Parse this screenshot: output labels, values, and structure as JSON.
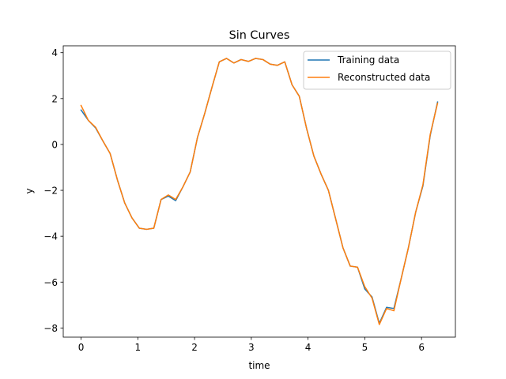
{
  "chart_data": {
    "type": "line",
    "title": "Sin Curves",
    "xlabel": "time",
    "ylabel": "y",
    "xlim": [
      -0.314,
      6.597
    ],
    "ylim": [
      -8.4,
      4.3
    ],
    "xticks": [
      0,
      1,
      2,
      3,
      4,
      5,
      6
    ],
    "yticks": [
      4,
      2,
      0,
      -2,
      -4,
      -6,
      -8
    ],
    "ytick_labels": [
      "4",
      "2",
      "0",
      "−2",
      "−4",
      "−6",
      "−8"
    ],
    "grid": false,
    "legend_position": "top-right",
    "x": [
      0.0,
      0.128,
      0.256,
      0.385,
      0.513,
      0.641,
      0.769,
      0.897,
      1.026,
      1.154,
      1.282,
      1.41,
      1.538,
      1.667,
      1.795,
      1.923,
      2.051,
      2.179,
      2.308,
      2.436,
      2.564,
      2.692,
      2.82,
      2.949,
      3.077,
      3.205,
      3.333,
      3.461,
      3.59,
      3.718,
      3.846,
      3.974,
      4.102,
      4.231,
      4.359,
      4.487,
      4.615,
      4.743,
      4.872,
      5.0,
      5.128,
      5.256,
      5.384,
      5.513,
      5.641,
      5.769,
      5.897,
      6.025,
      6.154,
      6.283
    ],
    "series": [
      {
        "name": "Training data",
        "color": "#1f77b4",
        "values": [
          1.5,
          1.05,
          0.72,
          0.15,
          -0.4,
          -1.55,
          -2.55,
          -3.2,
          -3.65,
          -3.7,
          -3.65,
          -2.4,
          -2.25,
          -2.45,
          -1.85,
          -1.2,
          0.3,
          1.35,
          2.5,
          3.6,
          3.75,
          3.55,
          3.7,
          3.62,
          3.75,
          3.7,
          3.5,
          3.45,
          3.6,
          2.6,
          2.1,
          0.7,
          -0.5,
          -1.3,
          -2.0,
          -3.25,
          -4.5,
          -5.3,
          -5.35,
          -6.3,
          -6.65,
          -7.8,
          -7.1,
          -7.15,
          -5.85,
          -4.5,
          -2.95,
          -1.8,
          0.4,
          1.85
        ]
      },
      {
        "name": "Reconstructed data",
        "color": "#ff7f0e",
        "values": [
          1.7,
          1.05,
          0.75,
          0.15,
          -0.4,
          -1.55,
          -2.55,
          -3.2,
          -3.65,
          -3.7,
          -3.65,
          -2.4,
          -2.2,
          -2.4,
          -1.85,
          -1.2,
          0.3,
          1.35,
          2.5,
          3.6,
          3.75,
          3.55,
          3.7,
          3.62,
          3.75,
          3.7,
          3.5,
          3.45,
          3.6,
          2.6,
          2.1,
          0.7,
          -0.5,
          -1.3,
          -2.0,
          -3.25,
          -4.5,
          -5.3,
          -5.35,
          -6.2,
          -6.7,
          -7.85,
          -7.15,
          -7.25,
          -5.85,
          -4.5,
          -2.95,
          -1.75,
          0.45,
          1.8
        ]
      }
    ]
  }
}
